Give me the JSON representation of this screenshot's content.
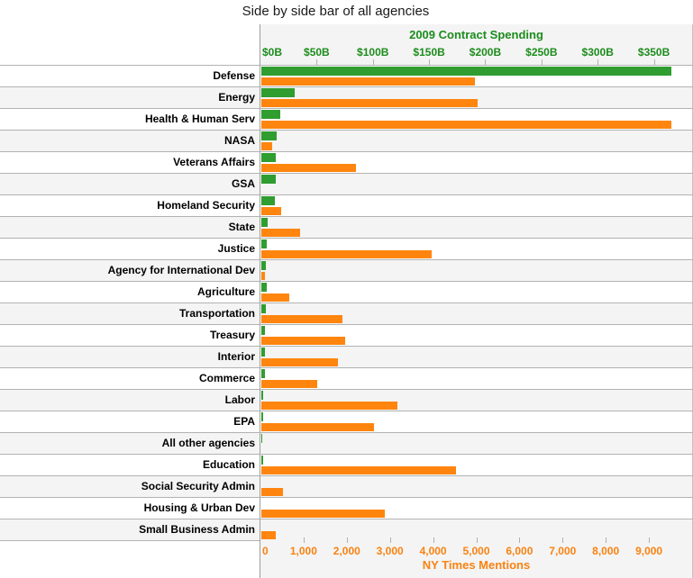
{
  "title": "Side by side bar of all agencies",
  "chart_data": {
    "type": "bar",
    "orientation": "horizontal",
    "grid": "horizontal-row-borders-only",
    "legend_position": "none",
    "categories": [
      "Defense",
      "Energy",
      "Health & Human Serv",
      "NASA",
      "Veterans Affairs",
      "GSA",
      "Homeland Security",
      "State",
      "Justice",
      "Agency for International Dev",
      "Agriculture",
      "Transportation",
      "Treasury",
      "Interior",
      "Commerce",
      "Labor",
      "EPA",
      "All other agencies",
      "Education",
      "Social Security Admin",
      "Housing & Urban Dev",
      "Small Business Admin"
    ],
    "series": [
      {
        "name": "2009 Contract Spending",
        "unit": "billion USD",
        "axis": "top",
        "color": "#2f9d2f",
        "values": [
          365,
          30,
          17,
          14,
          13,
          13,
          12,
          6,
          5,
          4,
          4.5,
          4,
          3.5,
          3.5,
          3,
          2,
          1.5,
          1,
          1.5,
          0,
          0,
          0
        ]
      },
      {
        "name": "NY Times Mentions",
        "unit": "mentions",
        "axis": "bottom",
        "color": "#ff850e",
        "values": [
          4950,
          5000,
          9500,
          250,
          2200,
          0,
          450,
          900,
          3950,
          75,
          650,
          1870,
          1950,
          1780,
          1300,
          3150,
          2600,
          0,
          4500,
          500,
          2850,
          330
        ]
      }
    ],
    "top_axis": {
      "title": "2009 Contract Spending",
      "text_color": "#1c8c1c",
      "tick_labels": [
        "$0B",
        "$50B",
        "$100B",
        "$150B",
        "$200B",
        "$250B",
        "$300B",
        "$350B"
      ],
      "tick_values": [
        0,
        50,
        100,
        150,
        200,
        250,
        300,
        350
      ],
      "value_at_right_edge": 384
    },
    "bottom_axis": {
      "title": "NY Times Mentions",
      "text_color": "#f98211",
      "tick_labels": [
        "0",
        "1,000",
        "2,000",
        "3,000",
        "4,000",
        "5,000",
        "6,000",
        "7,000",
        "8,000",
        "9,000"
      ],
      "tick_values": [
        0,
        1000,
        2000,
        3000,
        4000,
        5000,
        6000,
        7000,
        8000,
        9000
      ],
      "value_at_right_edge": 10000
    },
    "row_striping": {
      "even_row_color": "#ffffff",
      "odd_row_color": "#f4f4f4"
    }
  }
}
